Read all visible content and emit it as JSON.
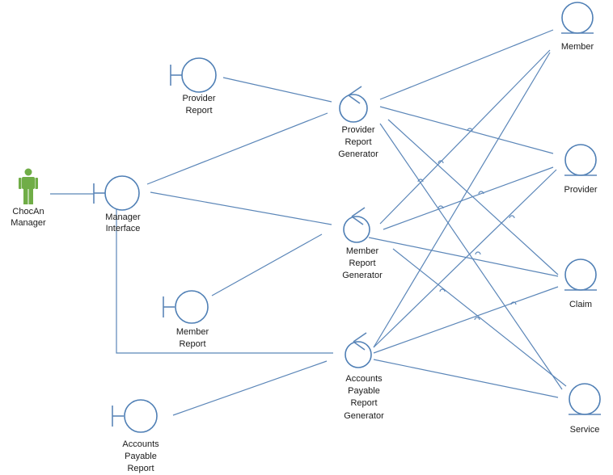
{
  "diagram": {
    "actor": {
      "line1": "ChocAn",
      "line2": "Manager"
    },
    "boundaries": {
      "manager_interface": {
        "line1": "Manager",
        "line2": "Interface"
      },
      "provider_report": {
        "line1": "Provider",
        "line2": "Report"
      },
      "member_report": {
        "line1": "Member",
        "line2": "Report"
      },
      "accounts_payable_report": {
        "line1": "Accounts",
        "line2": "Payable",
        "line3": "Report"
      }
    },
    "controls": {
      "provider_report_generator": {
        "line1": "Provider",
        "line2": "Report",
        "line3": "Generator"
      },
      "member_report_generator": {
        "line1": "Member",
        "line2": "Report",
        "line3": "Generator"
      },
      "accounts_payable_report_generator": {
        "line1": "Accounts",
        "line2": "Payable",
        "line3": "Report",
        "line4": "Generator"
      }
    },
    "entities": {
      "member": "Member",
      "provider": "Provider",
      "claim": "Claim",
      "service": "Service"
    }
  }
}
